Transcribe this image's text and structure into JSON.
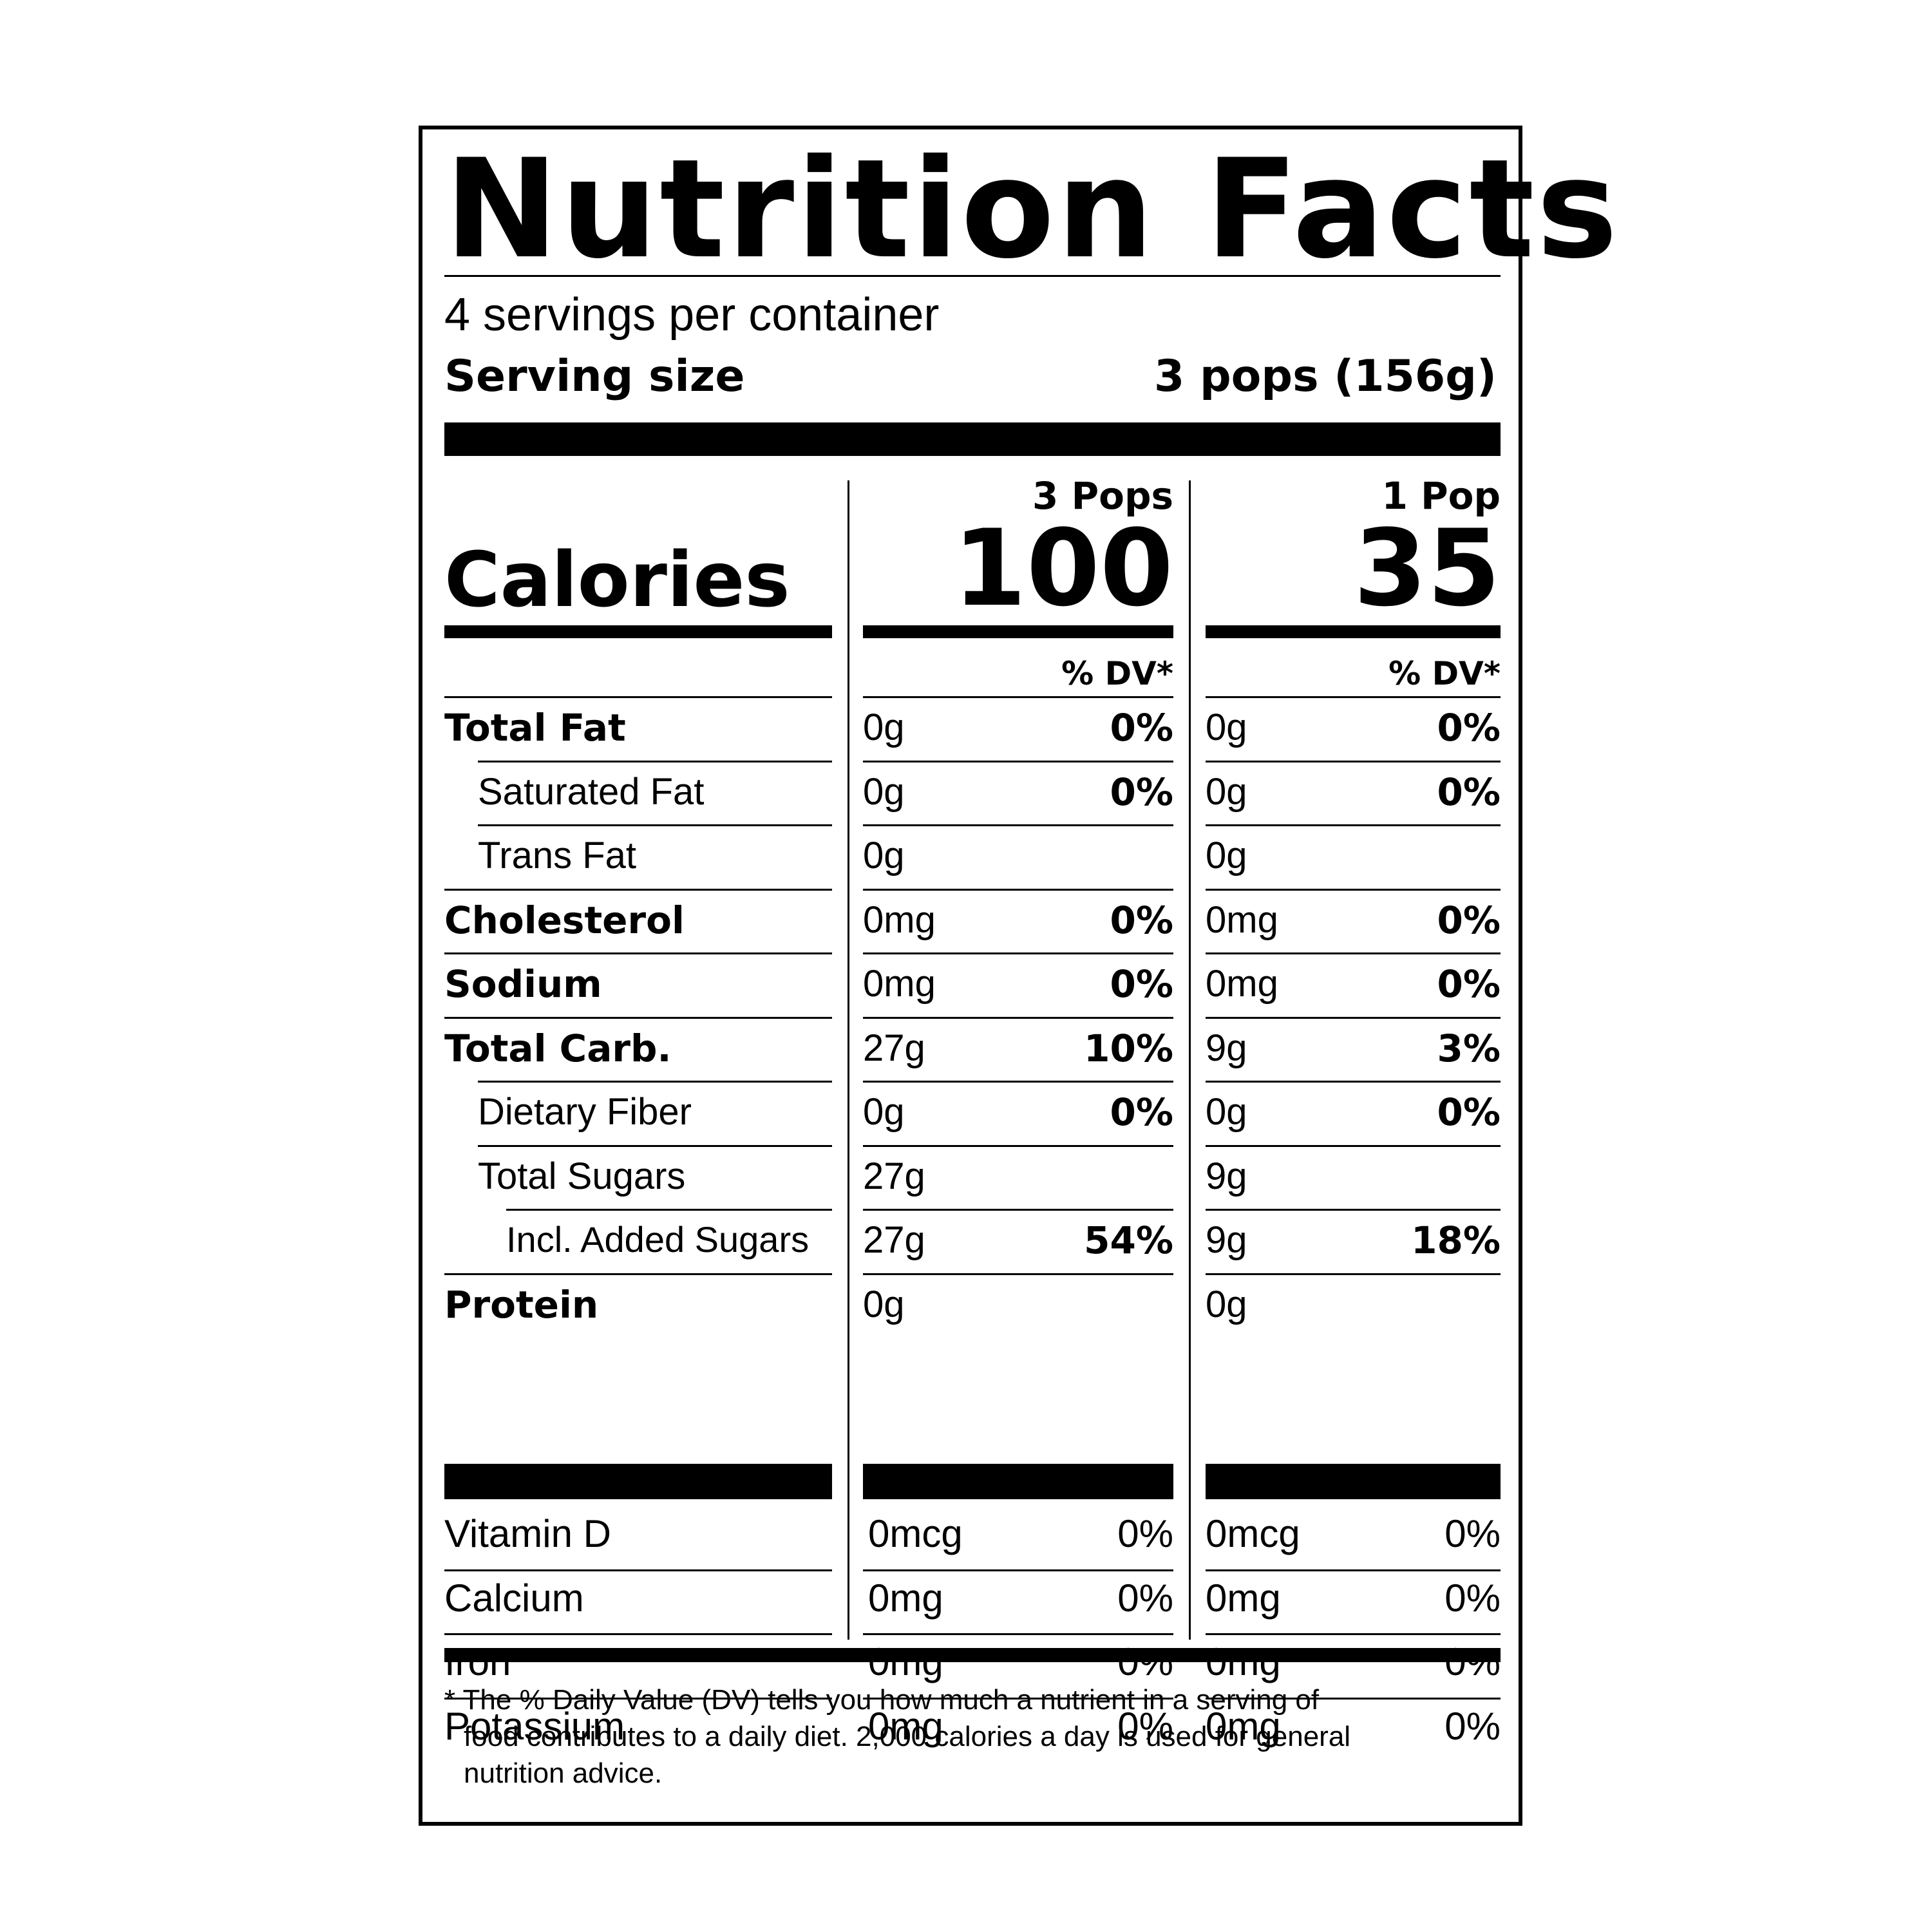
{
  "header": {
    "title": "Nutrition Facts",
    "servings_per_container": "4 servings per container",
    "serving_size_label": "Serving size",
    "serving_size_value": "3 pops (156g)"
  },
  "calories": {
    "label": "Calories",
    "col1_header": "3 Pops",
    "col1_value": "100",
    "col2_header": "1 Pop",
    "col2_value": "35",
    "dv_header": "% DV*"
  },
  "nutrients": [
    {
      "name": "Total Fat",
      "a1": "0g",
      "p1": "0%",
      "a2": "0g",
      "p2": "0%"
    },
    {
      "name": "Saturated Fat",
      "a1": "0g",
      "p1": "0%",
      "a2": "0g",
      "p2": "0%"
    },
    {
      "name": "Trans Fat",
      "a1": "0g",
      "p1": "",
      "a2": "0g",
      "p2": ""
    },
    {
      "name": "Cholesterol",
      "a1": "0mg",
      "p1": "0%",
      "a2": "0mg",
      "p2": "0%"
    },
    {
      "name": "Sodium",
      "a1": "0mg",
      "p1": "0%",
      "a2": "0mg",
      "p2": "0%"
    },
    {
      "name": "Total Carb.",
      "a1": "27g",
      "p1": "10%",
      "a2": "9g",
      "p2": "3%"
    },
    {
      "name": "Dietary Fiber",
      "a1": "0g",
      "p1": "0%",
      "a2": "0g",
      "p2": "0%"
    },
    {
      "name": "Total Sugars",
      "a1": "27g",
      "p1": "",
      "a2": "9g",
      "p2": ""
    },
    {
      "name": "Incl. Added Sugars",
      "a1": "27g",
      "p1": "54%",
      "a2": "9g",
      "p2": "18%"
    },
    {
      "name": "Protein",
      "a1": "0g",
      "p1": "",
      "a2": "0g",
      "p2": ""
    }
  ],
  "vitamins": [
    {
      "name": "Vitamin D",
      "a1": "0mcg",
      "p1": "0%",
      "a2": "0mcg",
      "p2": "0%"
    },
    {
      "name": "Calcium",
      "a1": "0mg",
      "p1": "0%",
      "a2": "0mg",
      "p2": "0%"
    },
    {
      "name": "Iron",
      "a1": "0mg",
      "p1": "0%",
      "a2": "0mg",
      "p2": "0%"
    },
    {
      "name": "Potassium",
      "a1": "0mg",
      "p1": "0%",
      "a2": "0mg",
      "p2": "0%"
    }
  ],
  "footnote": {
    "line1": "* The % Daily Value (DV) tells you how much a nutrient in a serving of",
    "line2": "food contributes to a daily diet. 2,000 calories a day is used for general",
    "line3": "nutrition advice."
  }
}
